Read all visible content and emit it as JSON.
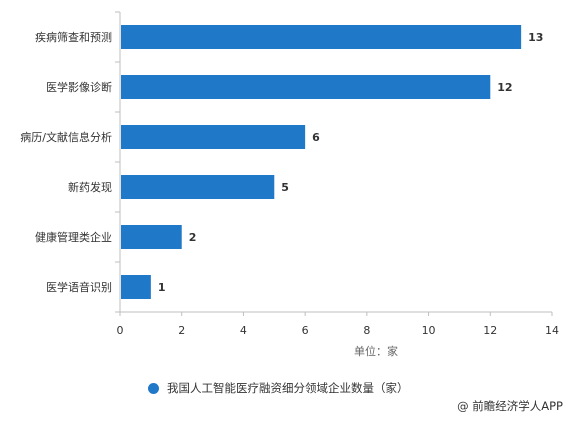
{
  "chart_data": {
    "type": "bar",
    "orientation": "horizontal",
    "categories": [
      "疾病筛查和预测",
      "医学影像诊断",
      "病历/文献信息分析",
      "新药发现",
      "健康管理类企业",
      "医学语音识别"
    ],
    "series": [
      {
        "name": "我国人工智能医疗融资细分领域企业数量（家）",
        "values": [
          13,
          12,
          6,
          5,
          2,
          1
        ],
        "color": "#1f78c8"
      }
    ],
    "xlim": [
      0,
      14
    ],
    "xticks": [
      0,
      2,
      4,
      6,
      8,
      10,
      12,
      14
    ],
    "xlabel": "单位：家",
    "grid": false,
    "legend_position": "bottom-center",
    "data_labels": true
  },
  "source": "@ 前瞻经济学人APP"
}
